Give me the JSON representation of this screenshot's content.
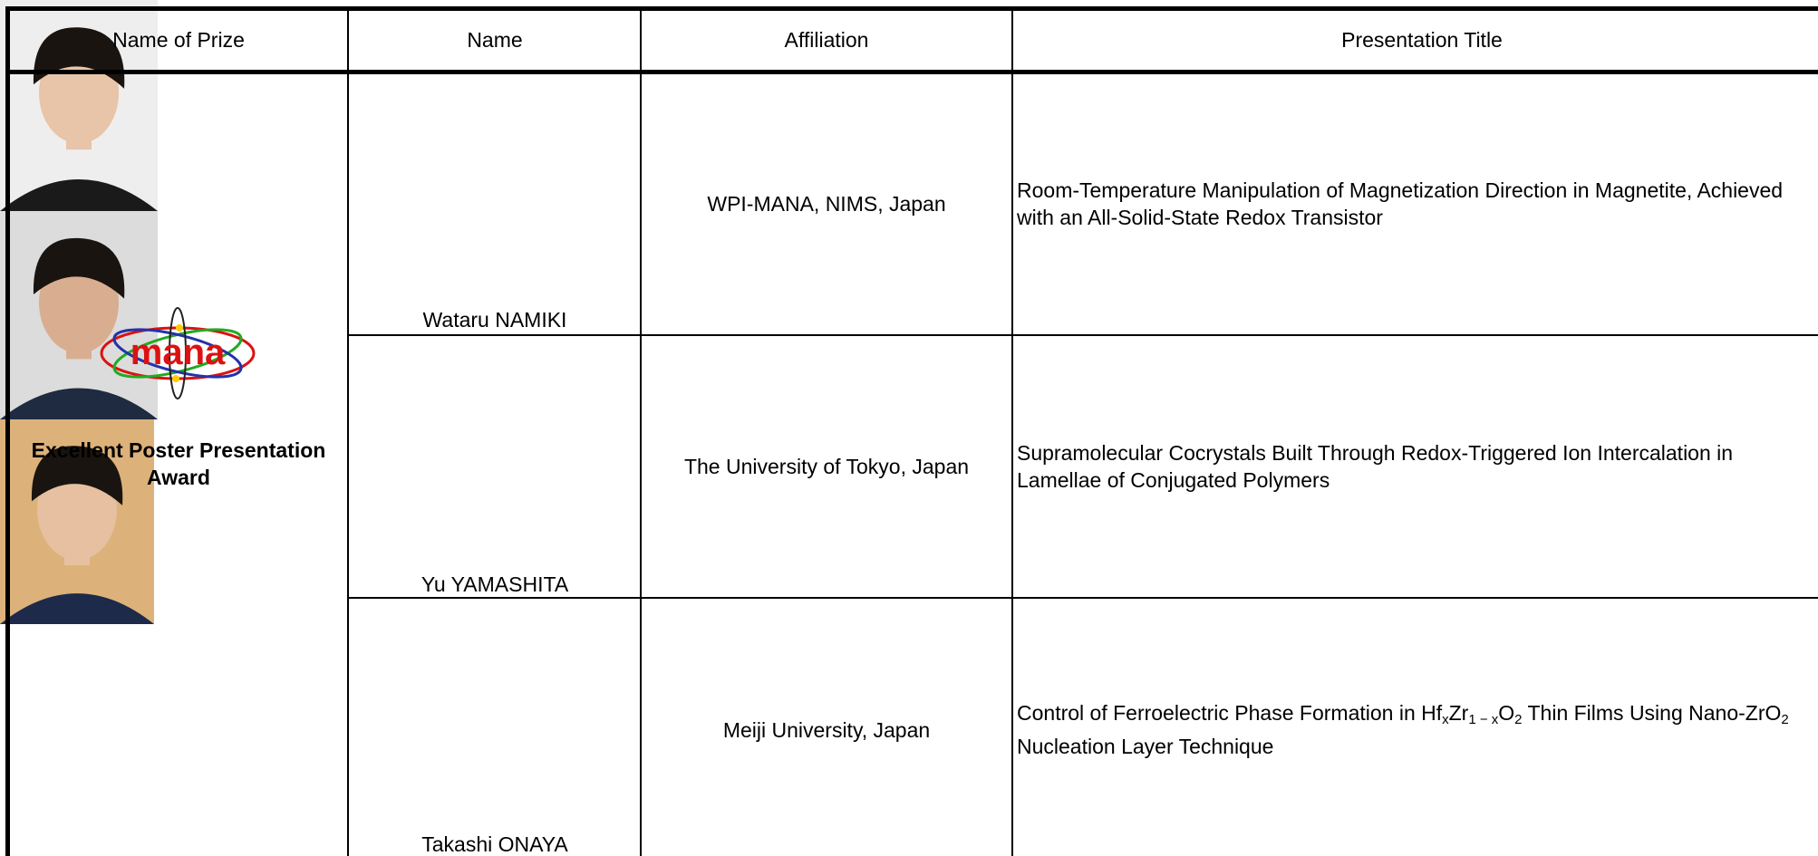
{
  "header": {
    "prize": "Name of Prize",
    "name": "Name",
    "affiliation": "Affiliation",
    "title": "Presentation Title"
  },
  "prize": {
    "logo": "mana",
    "label": "Excellent Poster Presentation Award"
  },
  "rows": [
    {
      "name": "Wataru NAMIKI",
      "affiliation": "WPI-MANA, NIMS, Japan",
      "title": [
        [
          "Room-Temperature Manipulation of Magnetization Direction in Magnetite, Achieved"
        ],
        [
          "with an All-Solid-State Redox Transistor"
        ]
      ]
    },
    {
      "name": "Yu YAMASHITA",
      "affiliation": "The University of Tokyo, Japan",
      "title": [
        [
          "Supramolecular Cocrystals Built Through Redox-Triggered Ion Intercalation in"
        ],
        [
          "Lamellae of Conjugated Polymers"
        ]
      ]
    },
    {
      "name": "Takashi ONAYA",
      "affiliation": "Meiji University, Japan",
      "title": [
        [
          "Control of Ferroelectric Phase Formation in Hf",
          {
            "sub": "x"
          },
          "Zr",
          {
            "sub": "1 − x"
          },
          "O",
          {
            "sub": "2"
          },
          " Thin Films Using Nano-ZrO",
          {
            "sub": "2"
          }
        ],
        [
          "Nucleation Layer Technique"
        ]
      ]
    }
  ]
}
